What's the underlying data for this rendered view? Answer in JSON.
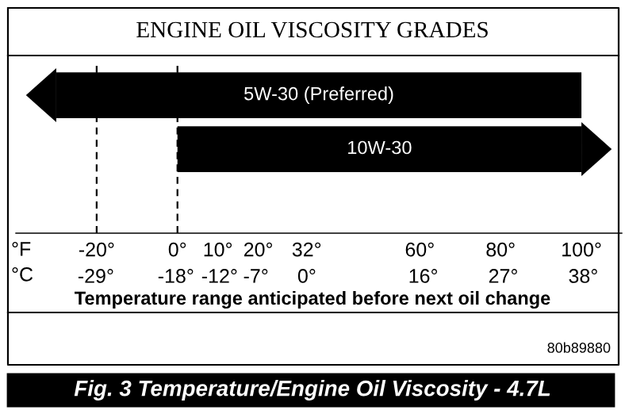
{
  "chart_data": {
    "type": "bar",
    "orientation": "horizontal",
    "title": "ENGINE OIL VISCOSITY GRADES",
    "categories": [
      "5W-30 (Preferred)",
      "10W-30"
    ],
    "base": [
      -30,
      0
    ],
    "values": [
      130,
      100
    ],
    "color": "#000000",
    "xlim": [
      -40,
      110
    ],
    "xticks": [
      {
        "value": -20,
        "label": "-20°"
      },
      {
        "value": 0,
        "label": "0°"
      },
      {
        "value": 10,
        "label": "10°"
      },
      {
        "value": 20,
        "label": "20°"
      },
      {
        "value": 32,
        "label": "32°"
      },
      {
        "value": 60,
        "label": "60°"
      },
      {
        "value": 80,
        "label": "80°"
      },
      {
        "value": 100,
        "label": "100°"
      }
    ],
    "x2lim": [
      -40,
      43.3
    ],
    "x2ticks": [
      {
        "value": -29,
        "label": "-29°"
      },
      {
        "value": -18,
        "label": "-18°"
      },
      {
        "value": -12,
        "label": "-12°"
      },
      {
        "value": -7,
        "label": "-7°"
      },
      {
        "value": 0,
        "label": "0°"
      },
      {
        "value": 16,
        "label": "16°"
      },
      {
        "value": 27,
        "label": "27°"
      },
      {
        "value": 38,
        "label": "38°"
      }
    ],
    "ref_lines": [
      {
        "axis": "x",
        "value": -20,
        "line_style": "dashed"
      },
      {
        "axis": "x",
        "value": 0,
        "line_style": "dashed"
      }
    ],
    "annotations": [
      "°F",
      "°C",
      "Temperature range anticipated before next oil change",
      "80b89880",
      "Fig. 3 Temperature/Engine Oil Viscosity - 4.7L"
    ],
    "grid": false
  }
}
